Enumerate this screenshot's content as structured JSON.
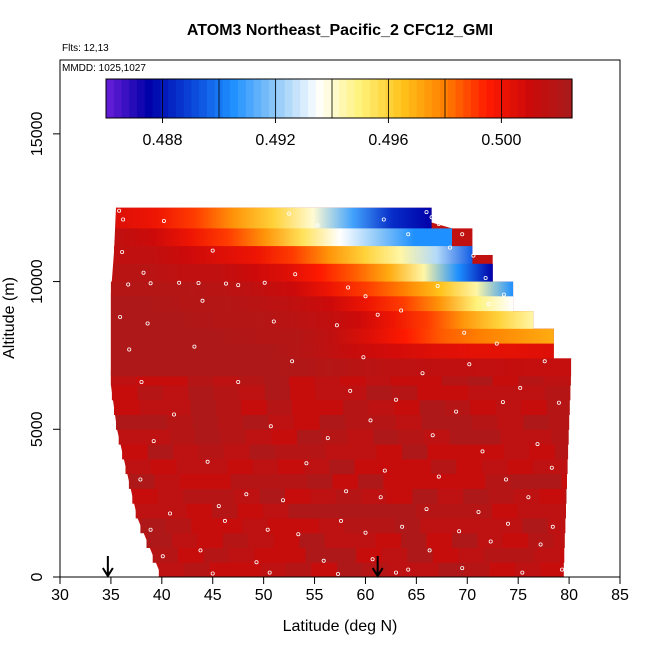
{
  "chart_data": {
    "type": "heatmap",
    "title": "ATOM3 Northeast_Pacific_2 CFC12_GMI",
    "flights_label": "Flts: 12,13",
    "dates_label": "MMDD: 1025,1027",
    "xlabel": "Latitude (deg N)",
    "ylabel": "Altitude (m)",
    "xlim": [
      30,
      85
    ],
    "ylim": [
      0,
      17500
    ],
    "x_ticks": [
      "30",
      "35",
      "40",
      "45",
      "50",
      "55",
      "60",
      "65",
      "70",
      "75",
      "80",
      "85"
    ],
    "y_ticks": [
      "0",
      "5000",
      "10000",
      "15000"
    ],
    "colorbar": {
      "range": [
        0.486,
        0.5025
      ],
      "tick_values": [
        0.488,
        0.492,
        0.496,
        0.5
      ],
      "tick_labels": [
        "0.488",
        "0.492",
        "0.496",
        "0.500"
      ]
    },
    "color_stops": [
      "#6a1fd8",
      "#0000a8",
      "#0a44d8",
      "#1e90ff",
      "#8ec8f8",
      "#ffffff",
      "#fff27a",
      "#ffc21a",
      "#ff7f00",
      "#ff1a00",
      "#cc0a0a",
      "#a81c1c"
    ],
    "arrows_lat": [
      34.7,
      61.2
    ],
    "background_value": 0.5015,
    "domain": {
      "top_lat_left": 35.3,
      "top_lat_right": 80.2,
      "right_edge": [
        [
          0,
          79.4
        ],
        [
          7400,
          80.2
        ],
        [
          7400,
          78.5
        ],
        [
          8400,
          78.5
        ],
        [
          8400,
          76.5
        ],
        [
          9000,
          76.5
        ],
        [
          9000,
          74.5
        ],
        [
          10000,
          74.5
        ],
        [
          10000,
          72.5
        ],
        [
          10900,
          72.5
        ],
        [
          10900,
          70.5
        ],
        [
          11800,
          70.5
        ],
        [
          11800,
          68.5
        ],
        [
          12000,
          66.5
        ],
        [
          12500,
          66.5
        ]
      ],
      "left_edge": [
        [
          0,
          40.0
        ],
        [
          1000,
          38.8
        ],
        [
          2000,
          37.6
        ],
        [
          3500,
          36.6
        ],
        [
          5000,
          35.6
        ],
        [
          6500,
          35.0
        ],
        [
          9600,
          35.0
        ],
        [
          11000,
          35.3
        ],
        [
          12500,
          35.5
        ]
      ]
    },
    "bands": [
      {
        "alt_bottom": 11800,
        "alt_top": 12500,
        "lat_start": 35.5,
        "lat_end": 66.5,
        "values": [
          0.5005,
          0.5,
          0.499,
          0.4975,
          0.496,
          0.494,
          0.491,
          0.4885,
          0.4875
        ]
      },
      {
        "alt_bottom": 11200,
        "alt_top": 11800,
        "lat_start": 35.5,
        "lat_end": 68.5,
        "values": [
          0.5015,
          0.501,
          0.5,
          0.499,
          0.4975,
          0.4955,
          0.4935,
          0.492,
          0.4905,
          0.4905
        ]
      },
      {
        "alt_bottom": 10600,
        "alt_top": 11200,
        "lat_start": 35.3,
        "lat_end": 70.5,
        "values": [
          0.5015,
          0.5015,
          0.501,
          0.5005,
          0.5,
          0.499,
          0.4975,
          0.496,
          0.4945,
          0.4925,
          0.4895
        ]
      },
      {
        "alt_bottom": 10000,
        "alt_top": 10600,
        "lat_start": 35.3,
        "lat_end": 72.5,
        "values": [
          0.5018,
          0.5018,
          0.5015,
          0.5015,
          0.501,
          0.5005,
          0.4995,
          0.4985,
          0.497,
          0.4945,
          0.4905,
          0.4875
        ]
      },
      {
        "alt_bottom": 9500,
        "alt_top": 10000,
        "lat_start": 35.0,
        "lat_end": 74.5,
        "values": [
          0.502,
          0.502,
          0.502,
          0.5018,
          0.5015,
          0.501,
          0.5,
          0.499,
          0.498,
          0.4965,
          0.4945,
          0.4905
        ]
      },
      {
        "alt_bottom": 9000,
        "alt_top": 9500,
        "lat_start": 35.0,
        "lat_end": 74.5,
        "values": [
          0.5022,
          0.5022,
          0.502,
          0.502,
          0.5018,
          0.5015,
          0.501,
          0.5,
          0.499,
          0.4975,
          0.495,
          0.4935
        ]
      },
      {
        "alt_bottom": 8400,
        "alt_top": 9000,
        "lat_start": 35.0,
        "lat_end": 76.5,
        "values": [
          0.5022,
          0.5022,
          0.5022,
          0.502,
          0.502,
          0.5018,
          0.5015,
          0.501,
          0.5,
          0.499,
          0.4975,
          0.496,
          0.4945
        ]
      },
      {
        "alt_bottom": 7900,
        "alt_top": 8400,
        "lat_start": 35.0,
        "lat_end": 78.5,
        "values": [
          0.5022,
          0.5022,
          0.5022,
          0.5022,
          0.502,
          0.502,
          0.5015,
          0.5005,
          0.4995,
          0.4985,
          0.498,
          0.4975,
          0.497
        ]
      },
      {
        "alt_bottom": 7400,
        "alt_top": 7900,
        "lat_start": 35.0,
        "lat_end": 78.5,
        "values": [
          0.5022,
          0.5022,
          0.5022,
          0.5022,
          0.5022,
          0.5018,
          0.5012,
          0.5008,
          0.5005,
          0.5003,
          0.5003,
          0.5005
        ]
      },
      {
        "alt_bottom": 6800,
        "alt_top": 7400,
        "lat_start": 35.0,
        "lat_end": 80.2,
        "values": [
          0.5022,
          0.5022,
          0.5022,
          0.5022,
          0.5022,
          0.502,
          0.5018,
          0.5016,
          0.5015,
          0.5014,
          0.5013,
          0.5013
        ]
      }
    ],
    "sample_points": [
      [
        35.8,
        12400
      ],
      [
        36.2,
        12100
      ],
      [
        40.2,
        12050
      ],
      [
        52.5,
        12300
      ],
      [
        66.0,
        12350
      ],
      [
        66.5,
        12180
      ],
      [
        67.2,
        11950
      ],
      [
        69.5,
        11600
      ],
      [
        36.1,
        11000
      ],
      [
        38.2,
        10300
      ],
      [
        45.0,
        11050
      ],
      [
        55.3,
        11900
      ],
      [
        61.8,
        12100
      ],
      [
        64.2,
        11600
      ],
      [
        68.3,
        11150
      ],
      [
        70.6,
        10880
      ],
      [
        36.7,
        9900
      ],
      [
        38.9,
        9940
      ],
      [
        41.7,
        9960
      ],
      [
        43.6,
        9950
      ],
      [
        46.3,
        9930
      ],
      [
        47.5,
        9880
      ],
      [
        50.1,
        9960
      ],
      [
        53.1,
        10250
      ],
      [
        58.3,
        9800
      ],
      [
        60.0,
        9500
      ],
      [
        63.5,
        9020
      ],
      [
        67.1,
        9850
      ],
      [
        71.8,
        10120
      ],
      [
        73.6,
        9560
      ],
      [
        72.1,
        9240
      ],
      [
        35.9,
        8800
      ],
      [
        38.6,
        8580
      ],
      [
        44.0,
        9350
      ],
      [
        51.0,
        8650
      ],
      [
        57.2,
        8520
      ],
      [
        61.2,
        8880
      ],
      [
        69.7,
        8270
      ],
      [
        72.9,
        7900
      ],
      [
        36.8,
        7700
      ],
      [
        43.2,
        7800
      ],
      [
        52.8,
        7300
      ],
      [
        59.8,
        7440
      ],
      [
        65.6,
        6900
      ],
      [
        70.2,
        7200
      ],
      [
        75.2,
        6400
      ],
      [
        77.6,
        7300
      ],
      [
        38.0,
        6600
      ],
      [
        47.5,
        6600
      ],
      [
        58.5,
        6300
      ],
      [
        63.0,
        6000
      ],
      [
        68.9,
        5600
      ],
      [
        73.5,
        5920
      ],
      [
        79.0,
        5900
      ],
      [
        41.2,
        5500
      ],
      [
        50.7,
        5100
      ],
      [
        56.3,
        4700
      ],
      [
        60.5,
        5300
      ],
      [
        66.6,
        4800
      ],
      [
        71.5,
        4250
      ],
      [
        76.9,
        4500
      ],
      [
        39.2,
        4600
      ],
      [
        44.5,
        3900
      ],
      [
        54.2,
        3850
      ],
      [
        61.9,
        3600
      ],
      [
        67.2,
        3400
      ],
      [
        73.8,
        3300
      ],
      [
        78.3,
        3700
      ],
      [
        37.9,
        3300
      ],
      [
        45.6,
        2400
      ],
      [
        51.9,
        2600
      ],
      [
        58.1,
        2900
      ],
      [
        61.5,
        2700
      ],
      [
        66.0,
        2300
      ],
      [
        71.1,
        2200
      ],
      [
        76.0,
        2700
      ],
      [
        40.8,
        2150
      ],
      [
        48.3,
        2800
      ],
      [
        57.6,
        1900
      ],
      [
        63.6,
        1700
      ],
      [
        69.2,
        1550
      ],
      [
        74.0,
        1800
      ],
      [
        78.4,
        1700
      ],
      [
        38.9,
        1600
      ],
      [
        46.2,
        1900
      ],
      [
        50.4,
        1600
      ],
      [
        53.4,
        1450
      ],
      [
        60.0,
        1500
      ],
      [
        66.3,
        900
      ],
      [
        72.3,
        1200
      ],
      [
        77.2,
        1100
      ],
      [
        40.1,
        700
      ],
      [
        43.8,
        900
      ],
      [
        49.3,
        500
      ],
      [
        55.9,
        550
      ],
      [
        60.7,
        600
      ],
      [
        64.2,
        250
      ],
      [
        69.5,
        300
      ],
      [
        75.4,
        150
      ],
      [
        79.3,
        250
      ],
      [
        39.5,
        150
      ],
      [
        45.0,
        120
      ],
      [
        50.6,
        150
      ],
      [
        57.3,
        100
      ],
      [
        63.0,
        150
      ]
    ]
  }
}
